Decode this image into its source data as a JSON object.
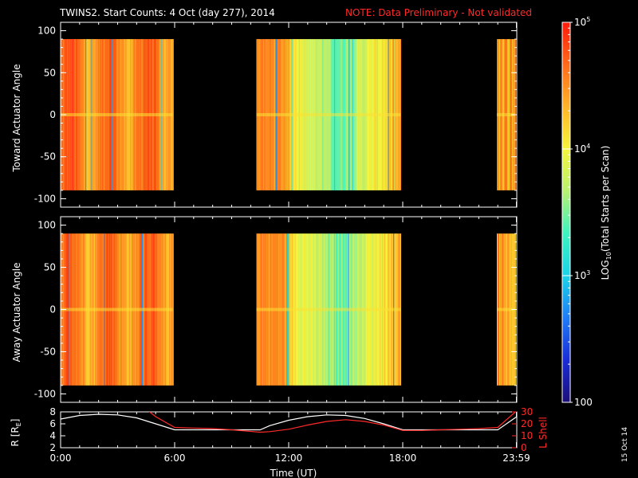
{
  "header": {
    "title": "TWINS2. Start Counts:  4 Oct (day 277), 2014",
    "note": "NOTE: Data Preliminary - Not validated"
  },
  "footer": {
    "date_stamp": "15 Oct 14"
  },
  "colors": {
    "background": "#000000",
    "axis": "#ffffff",
    "note": "#ff2a2a",
    "r_line": "#ffffff",
    "lshell_line": "#ff2a2a"
  },
  "chart_data": [
    {
      "type": "heatmap",
      "ylabel": "Toward Actuator Angle",
      "ylim": [
        -110,
        110
      ],
      "yticks": [
        "100",
        "50",
        "0",
        "-50",
        "-100"
      ],
      "data_y_range": [
        -90,
        90
      ],
      "xlim_hours": [
        0,
        24
      ],
      "data_intervals_hours": [
        [
          0,
          5.9
        ],
        [
          10.3,
          17.9
        ],
        [
          22.95,
          23.9
        ]
      ],
      "column_log10_values": [
        4.6,
        4.7,
        4.5,
        4.4,
        4.8,
        4.6,
        4.3,
        4.7,
        4.5,
        4.9,
        4.6,
        4.4,
        4.8,
        4.5,
        4.3,
        4.6,
        4.4,
        4.2,
        4.5,
        4.3,
        4.1,
        4.2,
        4.0,
        3.9,
        3.7,
        3.6,
        3.5,
        3.4,
        3.5,
        3.6,
        3.8,
        4.0,
        4.2,
        4.4,
        4.7,
        4.5,
        4.6,
        4.4,
        4.8,
        4.3,
        4.6,
        4.5
      ]
    },
    {
      "type": "heatmap",
      "ylabel": "Away Actuator Angle",
      "ylim": [
        -110,
        110
      ],
      "yticks": [
        "100",
        "50",
        "0",
        "-50",
        "-100"
      ],
      "data_y_range": [
        -90,
        90
      ],
      "xlim_hours": [
        0,
        24
      ],
      "data_intervals_hours": [
        [
          0,
          5.9
        ],
        [
          10.3,
          17.9
        ],
        [
          22.95,
          23.9
        ]
      ]
    },
    {
      "type": "line",
      "ylabel": "R [R",
      "ylabel_sub": "E",
      "ylabel_end": "]",
      "y2label": "L Shell",
      "ylim": [
        2,
        8
      ],
      "y2lim": [
        0,
        30
      ],
      "yticks": [
        "8",
        "6",
        "4",
        "2"
      ],
      "y2ticks": [
        "30",
        "20",
        "10",
        "0"
      ],
      "xlabel": "Time (UT)",
      "xticks": [
        "0:00",
        "6:00",
        "12:00",
        "18:00",
        "23:59"
      ],
      "xtick_hours": [
        0,
        6,
        12,
        18,
        23.98
      ],
      "series": [
        {
          "color": "#ffffff",
          "x": [
            0,
            1,
            2,
            3,
            4,
            5,
            6,
            7,
            8,
            9,
            10,
            10.5,
            11,
            12,
            13,
            14,
            15,
            16,
            17,
            18,
            19,
            20,
            21,
            22,
            23,
            24
          ],
          "y": [
            6.8,
            7.4,
            7.6,
            7.5,
            7.0,
            6.0,
            5.0,
            5.0,
            5.0,
            5.0,
            5.0,
            5.0,
            5.7,
            6.6,
            7.2,
            7.5,
            7.4,
            6.9,
            6.0,
            5.0,
            5.0,
            5.0,
            5.0,
            5.0,
            5.0,
            7.2
          ]
        },
        {
          "color": "#ff2a2a",
          "axis": "y2",
          "x": [
            4.6,
            5,
            6,
            7,
            8,
            9,
            10.5,
            11,
            12,
            13,
            14,
            15,
            16,
            17,
            18,
            19,
            20,
            21,
            22,
            23,
            24
          ],
          "y": [
            31,
            26,
            17,
            16.5,
            16,
            15,
            13,
            13.5,
            15.5,
            19,
            22,
            23.5,
            22,
            19,
            14.5,
            14.5,
            15,
            15.5,
            16,
            17,
            31
          ]
        }
      ]
    }
  ],
  "colorbar": {
    "label": "LOG",
    "label_sub": "10",
    "label_end": "(Total Starts per Scan)",
    "tick_labels": [
      "10",
      "10",
      "10",
      "100"
    ],
    "tick_exponents": [
      "5",
      "4",
      "3",
      ""
    ],
    "range_log10": [
      2,
      5
    ],
    "stops": [
      "#1c0f78",
      "#1a2cd8",
      "#1e7cf6",
      "#19d4e8",
      "#3df3c0",
      "#b9f070",
      "#f7f53b",
      "#ffb428",
      "#ff6a1a",
      "#ff1a0a"
    ]
  }
}
